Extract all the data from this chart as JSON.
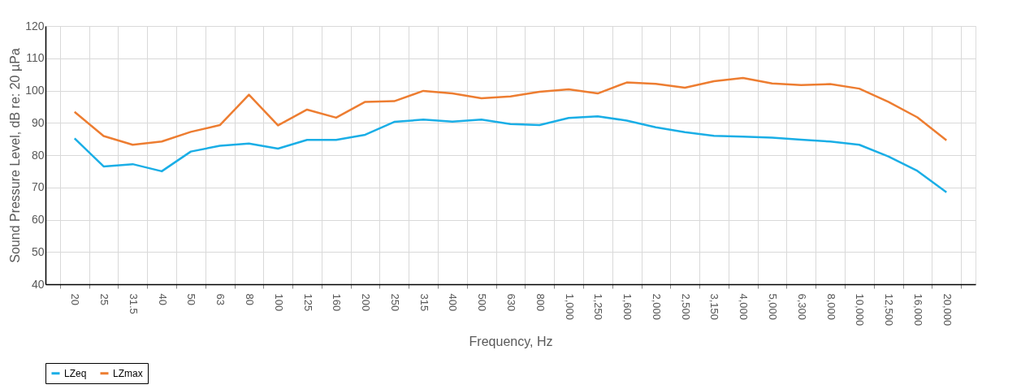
{
  "chart_data": {
    "type": "line",
    "xlabel": "Frequency, Hz",
    "ylabel": "Sound Pressure Level, dB re: 20 µPa",
    "categories": [
      "20",
      "25",
      "31.5",
      "40",
      "50",
      "63",
      "80",
      "100",
      "125",
      "160",
      "200",
      "250",
      "315",
      "400",
      "500",
      "630",
      "800",
      "1,000",
      "1,250",
      "1,600",
      "2,000",
      "2,500",
      "3,150",
      "4,000",
      "5,000",
      "6,300",
      "8,000",
      "10,000",
      "12,500",
      "16,000",
      "20,000"
    ],
    "series": [
      {
        "name": "LZeq",
        "color": "#1aaee6",
        "values": [
          85.2,
          76.5,
          77.2,
          75.0,
          81.1,
          82.9,
          83.6,
          82.0,
          84.7,
          84.7,
          86.3,
          90.3,
          91.0,
          90.4,
          91.0,
          89.6,
          89.3,
          91.5,
          92.0,
          90.7,
          88.6,
          87.1,
          86.0,
          85.7,
          85.4,
          84.8,
          84.2,
          83.2,
          79.6,
          75.1,
          68.5
        ]
      },
      {
        "name": "LZmax",
        "color": "#ed7d31",
        "values": [
          93.4,
          85.9,
          83.2,
          84.2,
          87.2,
          89.3,
          98.7,
          89.2,
          94.1,
          91.6,
          96.5,
          96.7,
          99.9,
          99.1,
          97.6,
          98.2,
          99.6,
          100.4,
          99.1,
          102.5,
          102.1,
          100.9,
          102.9,
          103.9,
          102.2,
          101.7,
          102.0,
          100.6,
          96.5,
          91.7,
          84.6
        ]
      }
    ],
    "ylim": [
      40,
      120
    ],
    "yticks": [
      40,
      50,
      60,
      70,
      80,
      90,
      100,
      110,
      120
    ],
    "grid": true,
    "legend": "bottom",
    "marker": "none",
    "line_style": "solid"
  }
}
